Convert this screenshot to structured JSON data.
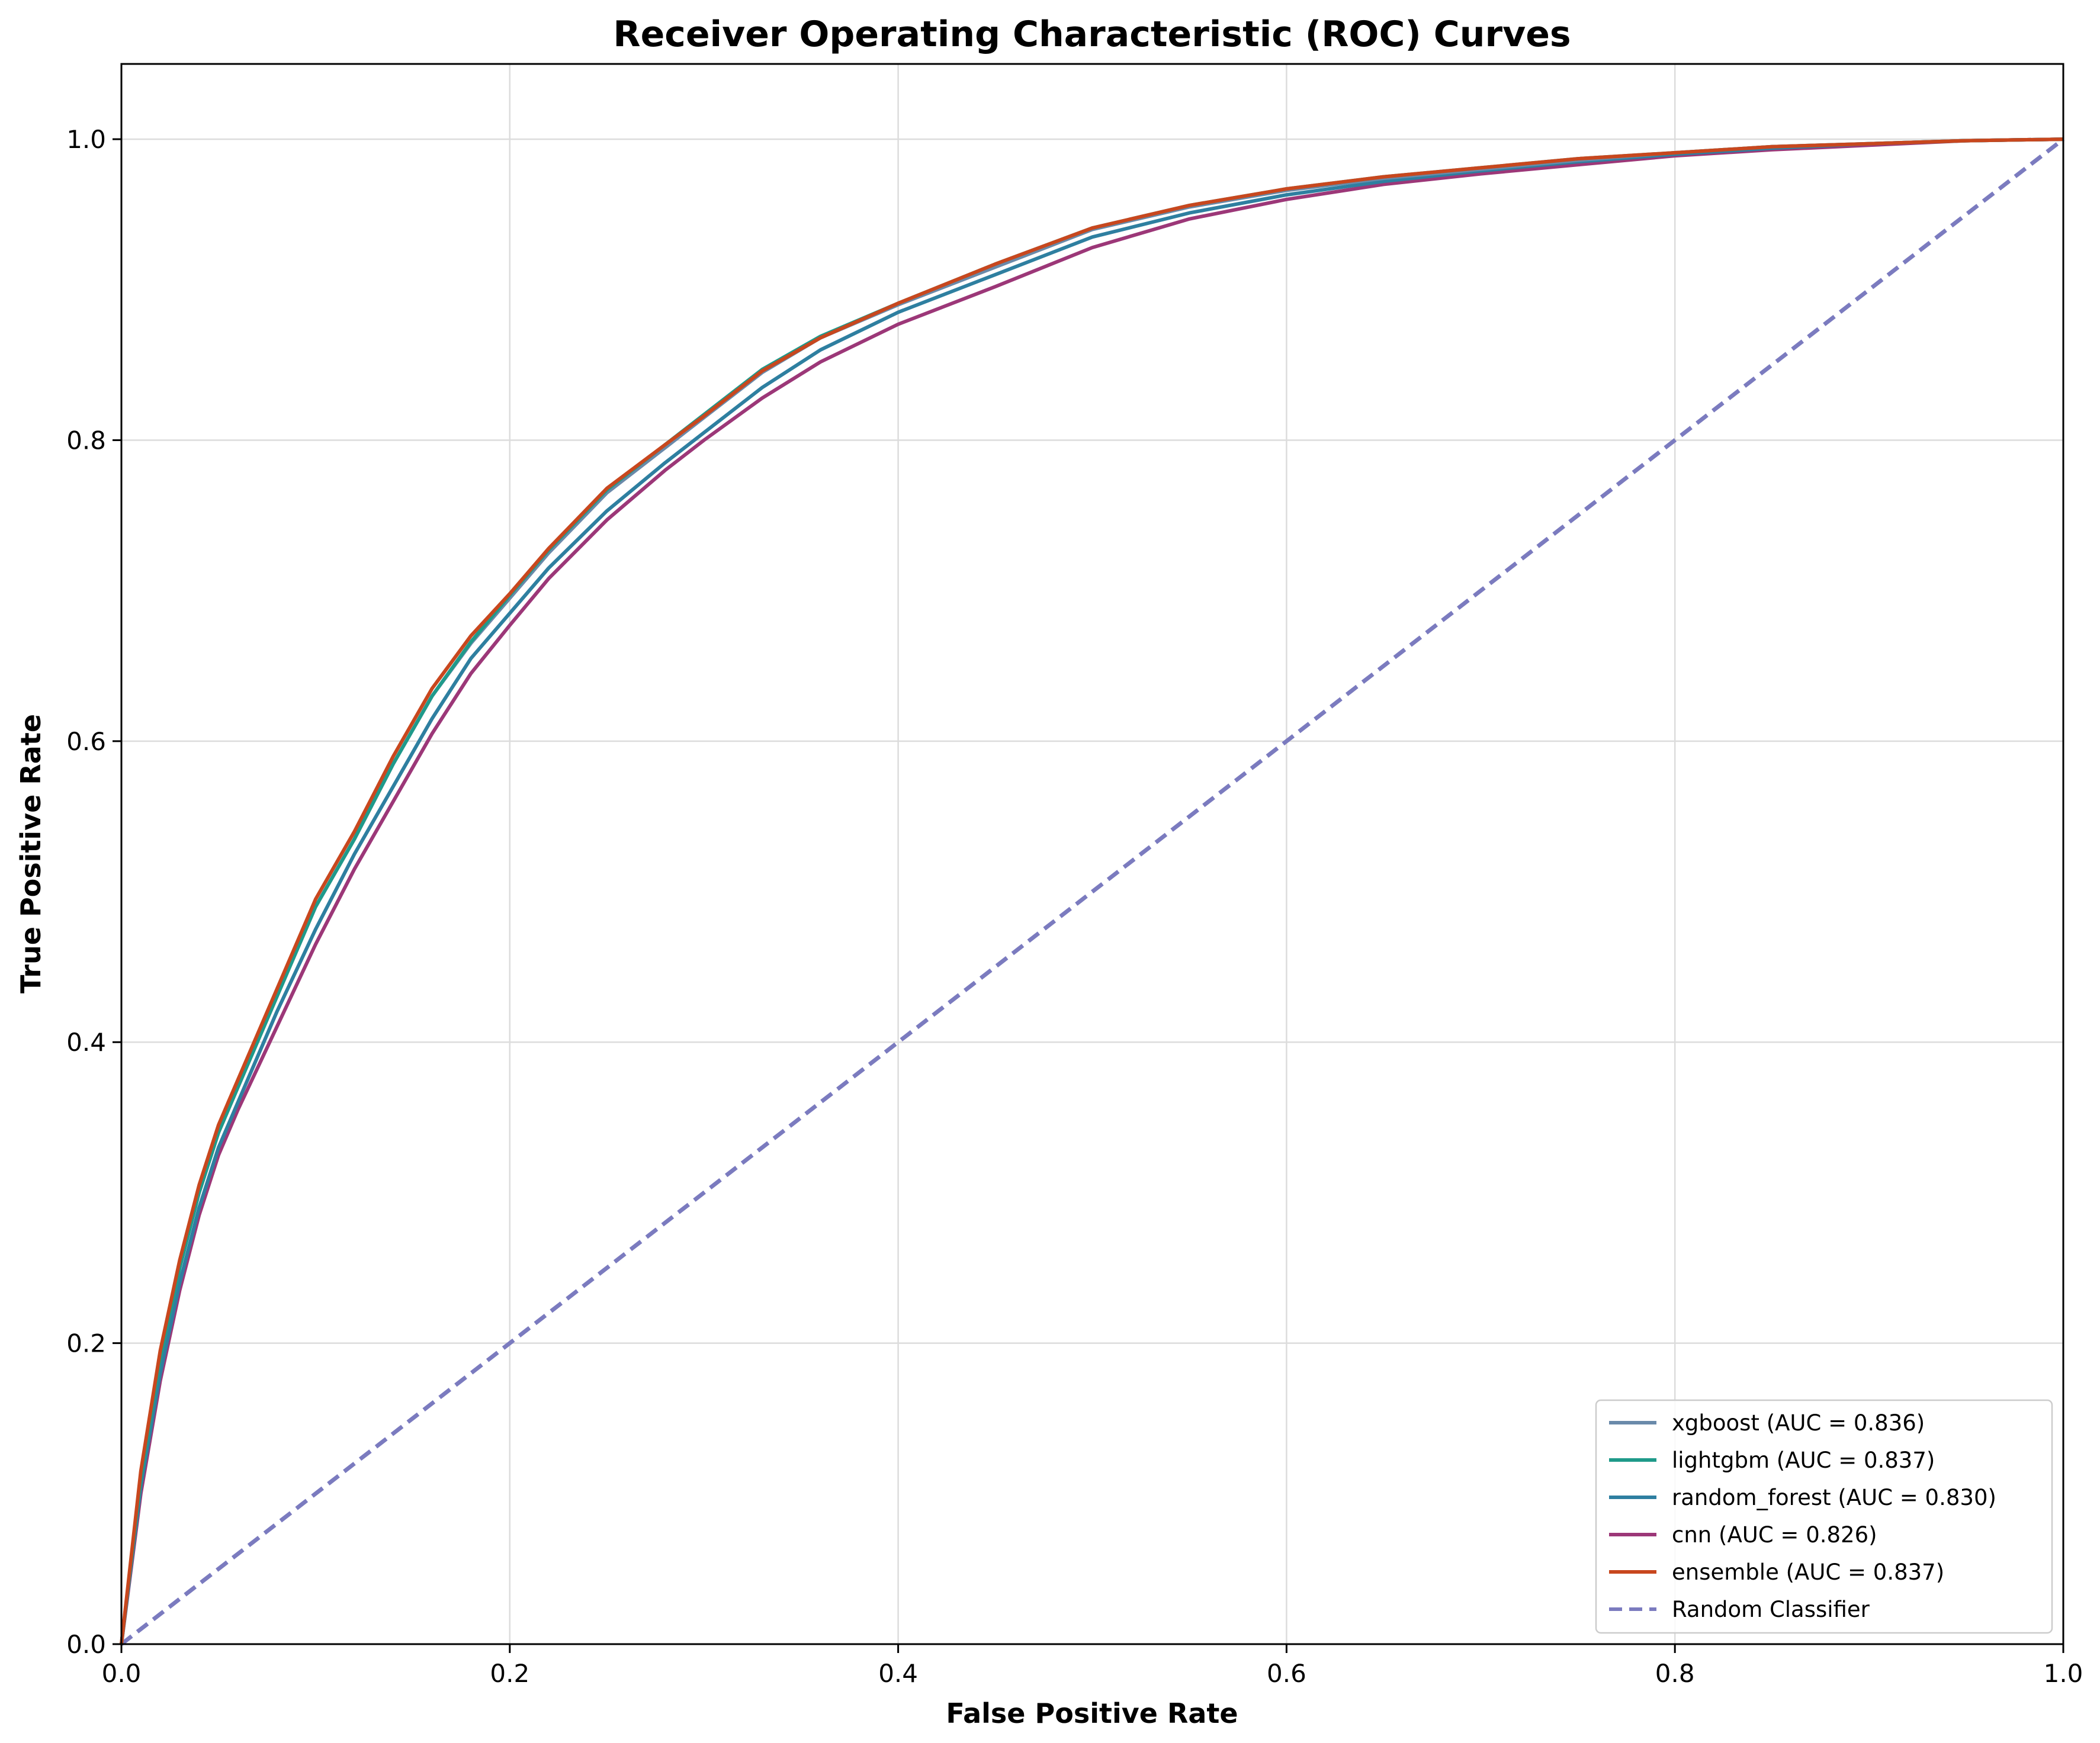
{
  "chart_data": {
    "type": "line",
    "title": "Receiver Operating Characteristic (ROC) Curves",
    "xlabel": "False Positive Rate",
    "ylabel": "True Positive Rate",
    "xlim": [
      0.0,
      1.0
    ],
    "ylim": [
      0.0,
      1.05
    ],
    "xticks": [
      0.0,
      0.2,
      0.4,
      0.6,
      0.8,
      1.0
    ],
    "yticks": [
      0.0,
      0.2,
      0.4,
      0.6,
      0.8,
      1.0
    ],
    "xtick_labels": [
      "0.0",
      "0.2",
      "0.4",
      "0.6",
      "0.8",
      "1.0"
    ],
    "ytick_labels": [
      "0.0",
      "0.2",
      "0.4",
      "0.6",
      "0.8",
      "1.0"
    ],
    "grid": true,
    "legend_position": "bottom-right",
    "series": [
      {
        "name": "xgboost (AUC = 0.836)",
        "color": "#6a8aaa",
        "style": "solid",
        "x": [
          0,
          0.01,
          0.02,
          0.03,
          0.04,
          0.05,
          0.06,
          0.08,
          0.1,
          0.12,
          0.14,
          0.16,
          0.18,
          0.2,
          0.22,
          0.25,
          0.28,
          0.3,
          0.33,
          0.36,
          0.4,
          0.45,
          0.5,
          0.55,
          0.6,
          0.65,
          0.7,
          0.75,
          0.8,
          0.85,
          0.9,
          0.95,
          1.0
        ],
        "y": [
          0,
          0.11,
          0.19,
          0.25,
          0.3,
          0.34,
          0.37,
          0.43,
          0.49,
          0.535,
          0.585,
          0.63,
          0.665,
          0.695,
          0.725,
          0.765,
          0.795,
          0.815,
          0.845,
          0.868,
          0.89,
          0.915,
          0.94,
          0.955,
          0.966,
          0.974,
          0.98,
          0.986,
          0.991,
          0.995,
          0.997,
          0.999,
          1.0
        ]
      },
      {
        "name": "lightgbm (AUC = 0.837)",
        "color": "#1f9a8a",
        "style": "solid",
        "x": [
          0,
          0.01,
          0.02,
          0.03,
          0.04,
          0.05,
          0.06,
          0.08,
          0.1,
          0.12,
          0.14,
          0.16,
          0.18,
          0.2,
          0.22,
          0.25,
          0.28,
          0.3,
          0.33,
          0.36,
          0.4,
          0.45,
          0.5,
          0.55,
          0.6,
          0.65,
          0.7,
          0.75,
          0.8,
          0.85,
          0.9,
          0.95,
          1.0
        ],
        "y": [
          0,
          0.11,
          0.19,
          0.25,
          0.3,
          0.34,
          0.37,
          0.43,
          0.49,
          0.535,
          0.585,
          0.63,
          0.666,
          0.697,
          0.727,
          0.767,
          0.797,
          0.817,
          0.847,
          0.869,
          0.891,
          0.917,
          0.941,
          0.956,
          0.967,
          0.975,
          0.981,
          0.987,
          0.991,
          0.995,
          0.997,
          0.999,
          1.0
        ]
      },
      {
        "name": "random_forest (AUC = 0.830)",
        "color": "#2e7fa0",
        "style": "solid",
        "x": [
          0,
          0.01,
          0.02,
          0.03,
          0.04,
          0.05,
          0.06,
          0.08,
          0.1,
          0.12,
          0.14,
          0.16,
          0.18,
          0.2,
          0.22,
          0.25,
          0.28,
          0.3,
          0.33,
          0.36,
          0.4,
          0.45,
          0.5,
          0.55,
          0.6,
          0.65,
          0.7,
          0.75,
          0.8,
          0.85,
          0.9,
          0.95,
          1.0
        ],
        "y": [
          0,
          0.105,
          0.18,
          0.24,
          0.29,
          0.33,
          0.36,
          0.42,
          0.475,
          0.525,
          0.57,
          0.615,
          0.655,
          0.685,
          0.715,
          0.753,
          0.785,
          0.805,
          0.835,
          0.86,
          0.885,
          0.91,
          0.935,
          0.951,
          0.963,
          0.972,
          0.979,
          0.985,
          0.99,
          0.994,
          0.997,
          0.999,
          1.0
        ]
      },
      {
        "name": "cnn (AUC = 0.826)",
        "color": "#9c3778",
        "style": "solid",
        "x": [
          0,
          0.01,
          0.02,
          0.03,
          0.04,
          0.05,
          0.06,
          0.08,
          0.1,
          0.12,
          0.14,
          0.16,
          0.18,
          0.2,
          0.22,
          0.25,
          0.28,
          0.3,
          0.33,
          0.36,
          0.4,
          0.45,
          0.5,
          0.55,
          0.6,
          0.65,
          0.7,
          0.75,
          0.8,
          0.85,
          0.9,
          0.95,
          1.0
        ],
        "y": [
          0,
          0.1,
          0.175,
          0.235,
          0.285,
          0.325,
          0.355,
          0.41,
          0.465,
          0.515,
          0.56,
          0.605,
          0.645,
          0.677,
          0.708,
          0.747,
          0.78,
          0.8,
          0.828,
          0.852,
          0.877,
          0.902,
          0.928,
          0.947,
          0.96,
          0.97,
          0.977,
          0.983,
          0.989,
          0.993,
          0.996,
          0.999,
          1.0
        ]
      },
      {
        "name": "ensemble (AUC = 0.837)",
        "color": "#c8471e",
        "style": "solid",
        "x": [
          0,
          0.01,
          0.02,
          0.03,
          0.04,
          0.05,
          0.06,
          0.08,
          0.1,
          0.12,
          0.14,
          0.16,
          0.18,
          0.2,
          0.22,
          0.25,
          0.28,
          0.3,
          0.33,
          0.36,
          0.4,
          0.45,
          0.5,
          0.55,
          0.6,
          0.65,
          0.7,
          0.75,
          0.8,
          0.85,
          0.9,
          0.95,
          1.0
        ],
        "y": [
          0,
          0.115,
          0.195,
          0.255,
          0.305,
          0.345,
          0.375,
          0.435,
          0.495,
          0.54,
          0.59,
          0.635,
          0.67,
          0.698,
          0.728,
          0.768,
          0.797,
          0.816,
          0.846,
          0.868,
          0.891,
          0.917,
          0.941,
          0.956,
          0.967,
          0.975,
          0.981,
          0.987,
          0.991,
          0.995,
          0.997,
          0.999,
          1.0
        ]
      },
      {
        "name": "Random Classifier",
        "color": "#7b7bbf",
        "style": "dashed",
        "x": [
          0,
          1
        ],
        "y": [
          0,
          1
        ]
      }
    ]
  }
}
